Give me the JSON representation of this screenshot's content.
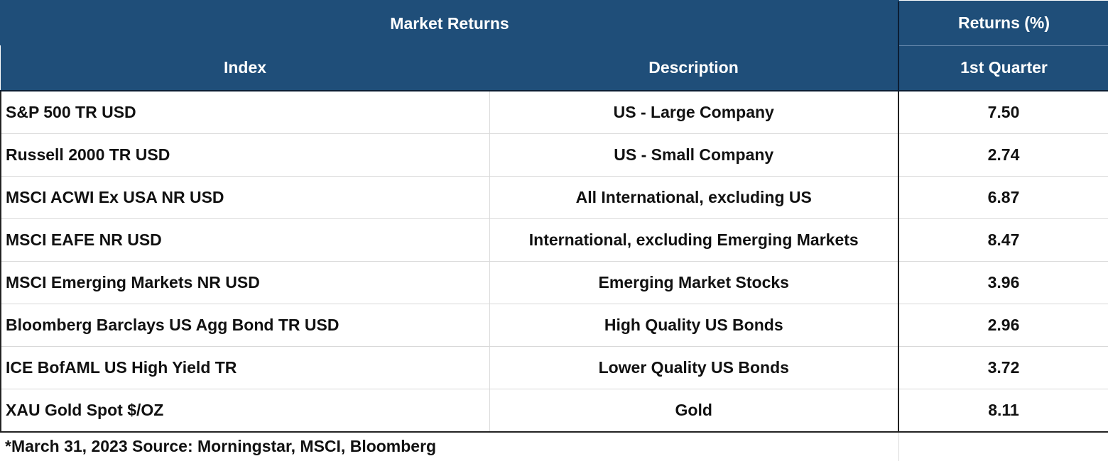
{
  "table": {
    "title": "Market Returns",
    "returns_header": "Returns (%)",
    "col_index": "Index",
    "col_description": "Description",
    "col_period": "1st Quarter",
    "rows": [
      {
        "index": "S&P 500 TR USD",
        "description": "US - Large Company",
        "value": "7.50"
      },
      {
        "index": "Russell 2000 TR USD",
        "description": "US - Small Company",
        "value": "2.74"
      },
      {
        "index": "MSCI ACWI Ex USA NR USD",
        "description": "All International, excluding US",
        "value": "6.87"
      },
      {
        "index": "MSCI EAFE NR USD",
        "description": "International, excluding Emerging Markets",
        "value": "8.47"
      },
      {
        "index": "MSCI Emerging Markets NR USD",
        "description": "Emerging Market Stocks",
        "value": "3.96"
      },
      {
        "index": "Bloomberg Barclays US Agg Bond TR USD",
        "description": "High Quality US Bonds",
        "value": "2.96"
      },
      {
        "index": "ICE BofAML US High Yield TR",
        "description": "Lower Quality US Bonds",
        "value": "3.72"
      },
      {
        "index": "XAU Gold Spot $/OZ",
        "description": "Gold",
        "value": "8.11"
      }
    ],
    "footnote": "*March 31, 2023 Source: Morningstar, MSCI, Bloomberg"
  },
  "colors": {
    "header_bg": "#1f4e79",
    "header_text": "#ffffff"
  }
}
